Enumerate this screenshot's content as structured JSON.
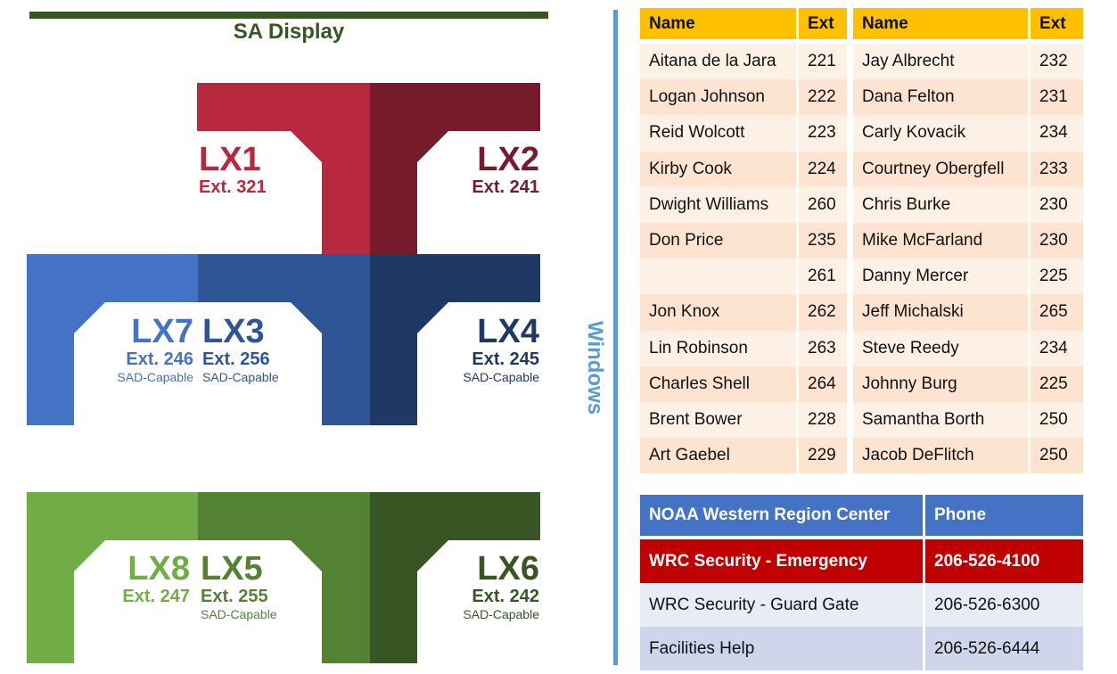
{
  "header": {
    "title": "SA Display"
  },
  "windows_label": "Windows",
  "workstations": {
    "lx1": {
      "name": "LX1",
      "ext": "Ext. 321"
    },
    "lx2": {
      "name": "LX2",
      "ext": "Ext. 241"
    },
    "lx7": {
      "name": "LX7",
      "ext": "Ext. 246",
      "note": "SAD-Capable"
    },
    "lx3": {
      "name": "LX3",
      "ext": "Ext. 256",
      "note": "SAD-Capable"
    },
    "lx4": {
      "name": "LX4",
      "ext": "Ext. 245",
      "note": "SAD-Capable"
    },
    "lx8": {
      "name": "LX8",
      "ext": "Ext. 247"
    },
    "lx5": {
      "name": "LX5",
      "ext": "Ext. 255",
      "note": "SAD-Capable"
    },
    "lx6": {
      "name": "LX6",
      "ext": "Ext. 242",
      "note": "SAD-Capable"
    }
  },
  "colors": {
    "red_light": "#b8283f",
    "red_dark": "#761b2b",
    "blue_light": "#4472c4",
    "blue_mid": "#2f5597",
    "blue_dark": "#203864",
    "green_light": "#70ad47",
    "green_mid": "#548235",
    "green_dark": "#375623",
    "windows": "#5b9bd5",
    "header_gold": "#ffc000"
  },
  "directory_left": {
    "headers": [
      "Name",
      "Ext"
    ],
    "rows": [
      [
        "Aitana de la Jara",
        "221"
      ],
      [
        "Logan Johnson",
        "222"
      ],
      [
        "Reid Wolcott",
        "223"
      ],
      [
        "Kirby Cook",
        "224"
      ],
      [
        "Dwight Williams",
        "260"
      ],
      [
        "Don Price",
        "235"
      ],
      [
        "",
        "261"
      ],
      [
        "Jon Knox",
        "262"
      ],
      [
        "Lin Robinson",
        "263"
      ],
      [
        "Charles Shell",
        "264"
      ],
      [
        "Brent Bower",
        "228"
      ],
      [
        "Art Gaebel",
        "229"
      ]
    ]
  },
  "directory_right": {
    "headers": [
      "Name",
      "Ext"
    ],
    "rows": [
      [
        "Jay Albrecht",
        "232"
      ],
      [
        "Dana Felton",
        "231"
      ],
      [
        "Carly Kovacik",
        "234"
      ],
      [
        "Courtney Obergfell",
        "233"
      ],
      [
        "Chris Burke",
        "230"
      ],
      [
        "Mike McFarland",
        "230"
      ],
      [
        "Danny Mercer",
        "225"
      ],
      [
        "Jeff Michalski",
        "265"
      ],
      [
        "Steve Reedy",
        "234"
      ],
      [
        "Johnny Burg",
        "225"
      ],
      [
        "Samantha Borth",
        "250"
      ],
      [
        "Jacob DeFlitch",
        "250"
      ]
    ]
  },
  "noaa": {
    "headers": [
      "NOAA Western Region Center",
      "Phone"
    ],
    "rows": [
      [
        "WRC Security - Emergency",
        "206-526-4100"
      ],
      [
        "WRC Security - Guard Gate",
        "206-526-6300"
      ],
      [
        "Facilities Help",
        "206-526-6444"
      ]
    ]
  }
}
